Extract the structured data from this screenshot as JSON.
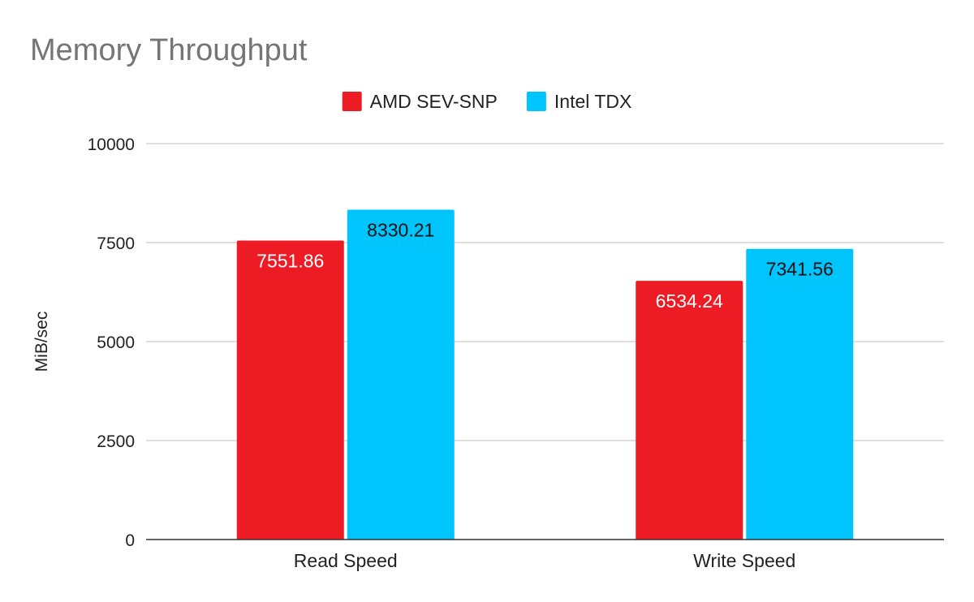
{
  "chart_data": {
    "type": "bar",
    "title": "Memory Throughput",
    "xlabel": "",
    "ylabel": "MiB/sec",
    "categories": [
      "Read Speed",
      "Write Speed"
    ],
    "series": [
      {
        "name": "AMD SEV-SNP",
        "color": "#ed1c24",
        "label_color": "#ffffff",
        "values": [
          7551.86,
          6534.24
        ]
      },
      {
        "name": "Intel TDX",
        "color": "#00c5fc",
        "label_color": "#111111",
        "values": [
          8330.21,
          7341.56
        ]
      }
    ],
    "ylim": [
      0,
      10000
    ],
    "yticks": [
      0,
      2500,
      5000,
      7500,
      10000
    ],
    "grid": true,
    "legend_position": "top-center",
    "data_labels": true
  }
}
